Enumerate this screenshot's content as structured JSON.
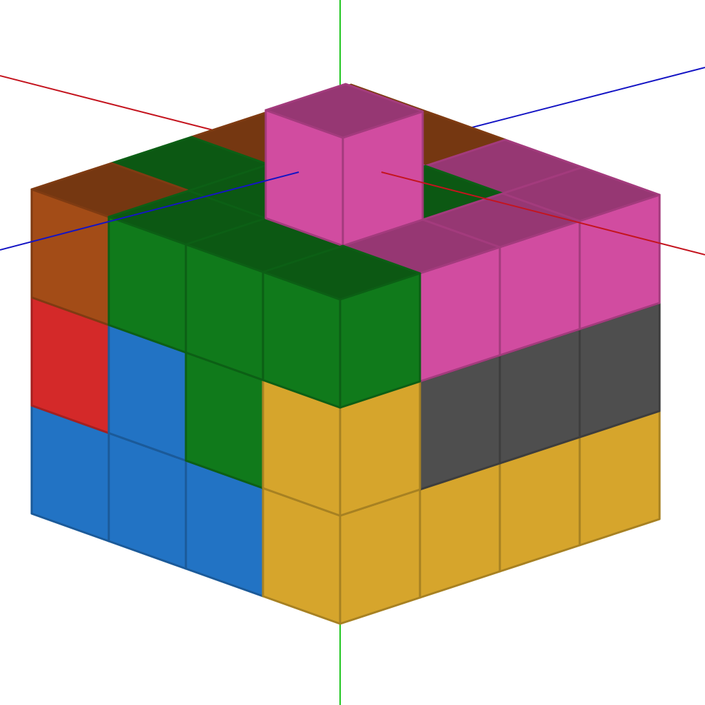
{
  "scene": {
    "colors": {
      "orange": "#a34c17",
      "green": "#107a1b",
      "pink": "#d14ca0",
      "red": "#d42929",
      "blue": "#2273c4",
      "yellow": "#d6a52c",
      "gray": "#4e4e4e",
      "background": "#ffffff"
    },
    "axes": {
      "x_color": "#c4141e",
      "y_color": "#1ec41e",
      "z_color": "#1414c4"
    },
    "cubes": [
      {
        "x": 3,
        "y": 0,
        "z": 3,
        "color": "gray"
      },
      {
        "x": 3,
        "y": 1,
        "z": 3,
        "color": "orange"
      },
      {
        "x": 3,
        "y": 2,
        "z": 3,
        "color": "orange"
      },
      {
        "x": 2,
        "y": 2,
        "z": 3,
        "color": "orange"
      },
      {
        "x": 3,
        "y": 2,
        "z": 2,
        "color": "orange"
      },
      {
        "x": 2,
        "y": 2,
        "z": 2,
        "color": "pink"
      },
      {
        "x": 1,
        "y": 2,
        "z": 3,
        "color": "pink"
      },
      {
        "x": 0,
        "y": 2,
        "z": 3,
        "color": "pink"
      },
      {
        "x": 0,
        "y": 1,
        "z": 3,
        "color": "gray"
      },
      {
        "x": 0,
        "y": 0,
        "z": 3,
        "color": "yellow"
      },
      {
        "x": 3,
        "y": 0,
        "z": 0,
        "color": "blue"
      },
      {
        "x": 3,
        "y": 1,
        "z": 0,
        "color": "red"
      },
      {
        "x": 3,
        "y": 2,
        "z": 0,
        "color": "orange"
      },
      {
        "x": 3,
        "y": 0,
        "z": 1,
        "color": "blue"
      },
      {
        "x": 3,
        "y": 1,
        "z": 1,
        "color": "blue"
      },
      {
        "x": 3,
        "y": 2,
        "z": 1,
        "color": "green"
      },
      {
        "x": 2,
        "y": 2,
        "z": 1,
        "color": "green"
      },
      {
        "x": 1,
        "y": 2,
        "z": 1,
        "color": "green"
      },
      {
        "x": 1,
        "y": 2,
        "z": 2,
        "color": "green"
      },
      {
        "x": 0,
        "y": 2,
        "z": 2,
        "color": "pink"
      },
      {
        "x": 0,
        "y": 2,
        "z": 1,
        "color": "pink"
      },
      {
        "x": 2,
        "y": 0,
        "z": 0,
        "color": "blue"
      },
      {
        "x": 2,
        "y": 1,
        "z": 0,
        "color": "blue"
      },
      {
        "x": 2,
        "y": 2,
        "z": 0,
        "color": "green"
      },
      {
        "x": 1,
        "y": 0,
        "z": 0,
        "color": "blue"
      },
      {
        "x": 1,
        "y": 1,
        "z": 0,
        "color": "green"
      },
      {
        "x": 1,
        "y": 2,
        "z": 0,
        "color": "green"
      },
      {
        "x": 0,
        "y": 0,
        "z": 0,
        "color": "yellow"
      },
      {
        "x": 0,
        "y": 1,
        "z": 0,
        "color": "yellow"
      },
      {
        "x": 0,
        "y": 2,
        "z": 0,
        "color": "green"
      },
      {
        "x": 0,
        "y": 0,
        "z": 1,
        "color": "yellow"
      },
      {
        "x": 0,
        "y": 1,
        "z": 1,
        "color": "gray"
      },
      {
        "x": 0,
        "y": 0,
        "z": 2,
        "color": "yellow"
      },
      {
        "x": 0,
        "y": 1,
        "z": 2,
        "color": "gray"
      },
      {
        "x": 1,
        "y": 3,
        "z": 1,
        "color": "pink"
      }
    ]
  }
}
